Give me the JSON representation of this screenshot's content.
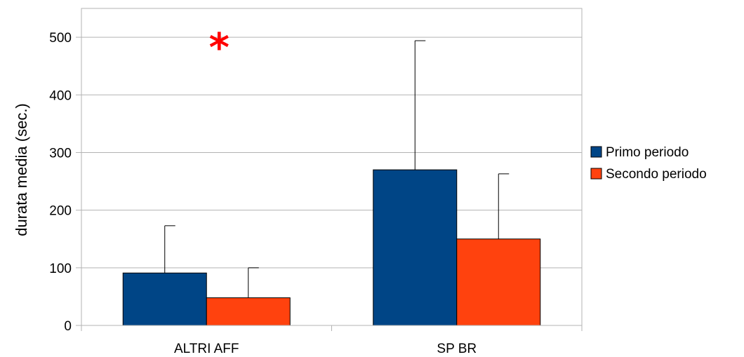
{
  "chart_data": {
    "type": "bar",
    "title": "",
    "xlabel": "",
    "ylabel": "durata media (sec.)",
    "categories": [
      "ALTRI AFF",
      "SP BR"
    ],
    "series": [
      {
        "name": "Primo periodo",
        "color": "#004586",
        "values": [
          91,
          270
        ],
        "error_upper": [
          173,
          494
        ]
      },
      {
        "name": "Secondo periodo",
        "color": "#ff420e",
        "values": [
          48,
          150
        ],
        "error_upper": [
          100,
          263
        ]
      }
    ],
    "ylim": [
      0,
      550
    ],
    "yticks": [
      0,
      100,
      200,
      300,
      400,
      500
    ],
    "ytick_labels": [
      "0",
      "100",
      "200",
      "300",
      "400",
      "500"
    ],
    "grid": true,
    "legend_position": "right",
    "annotations": [
      {
        "text": "*",
        "category": "ALTRI AFF",
        "y": 500,
        "color": "#ff0000"
      }
    ]
  }
}
